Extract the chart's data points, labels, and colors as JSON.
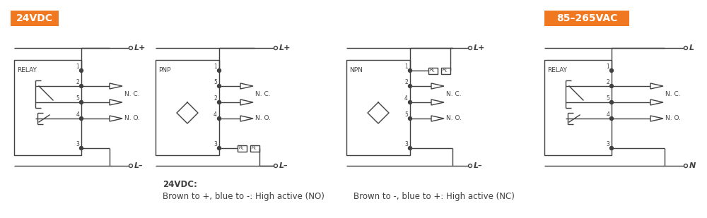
{
  "bg_color": "#ffffff",
  "line_color": "#404040",
  "orange_color": "#F07820",
  "orange_text": "#ffffff",
  "label_24vdc": "24VDC",
  "label_85vac": "85–265VAC",
  "text_24vdc_label": "24VDC:",
  "text_brown_no": "Brown to +, blue to -: High active (NO)",
  "text_brown_nc": "Brown to -, blue to +: High active (NC)",
  "figsize": [
    10.0,
    3.09
  ],
  "dpi": 100
}
